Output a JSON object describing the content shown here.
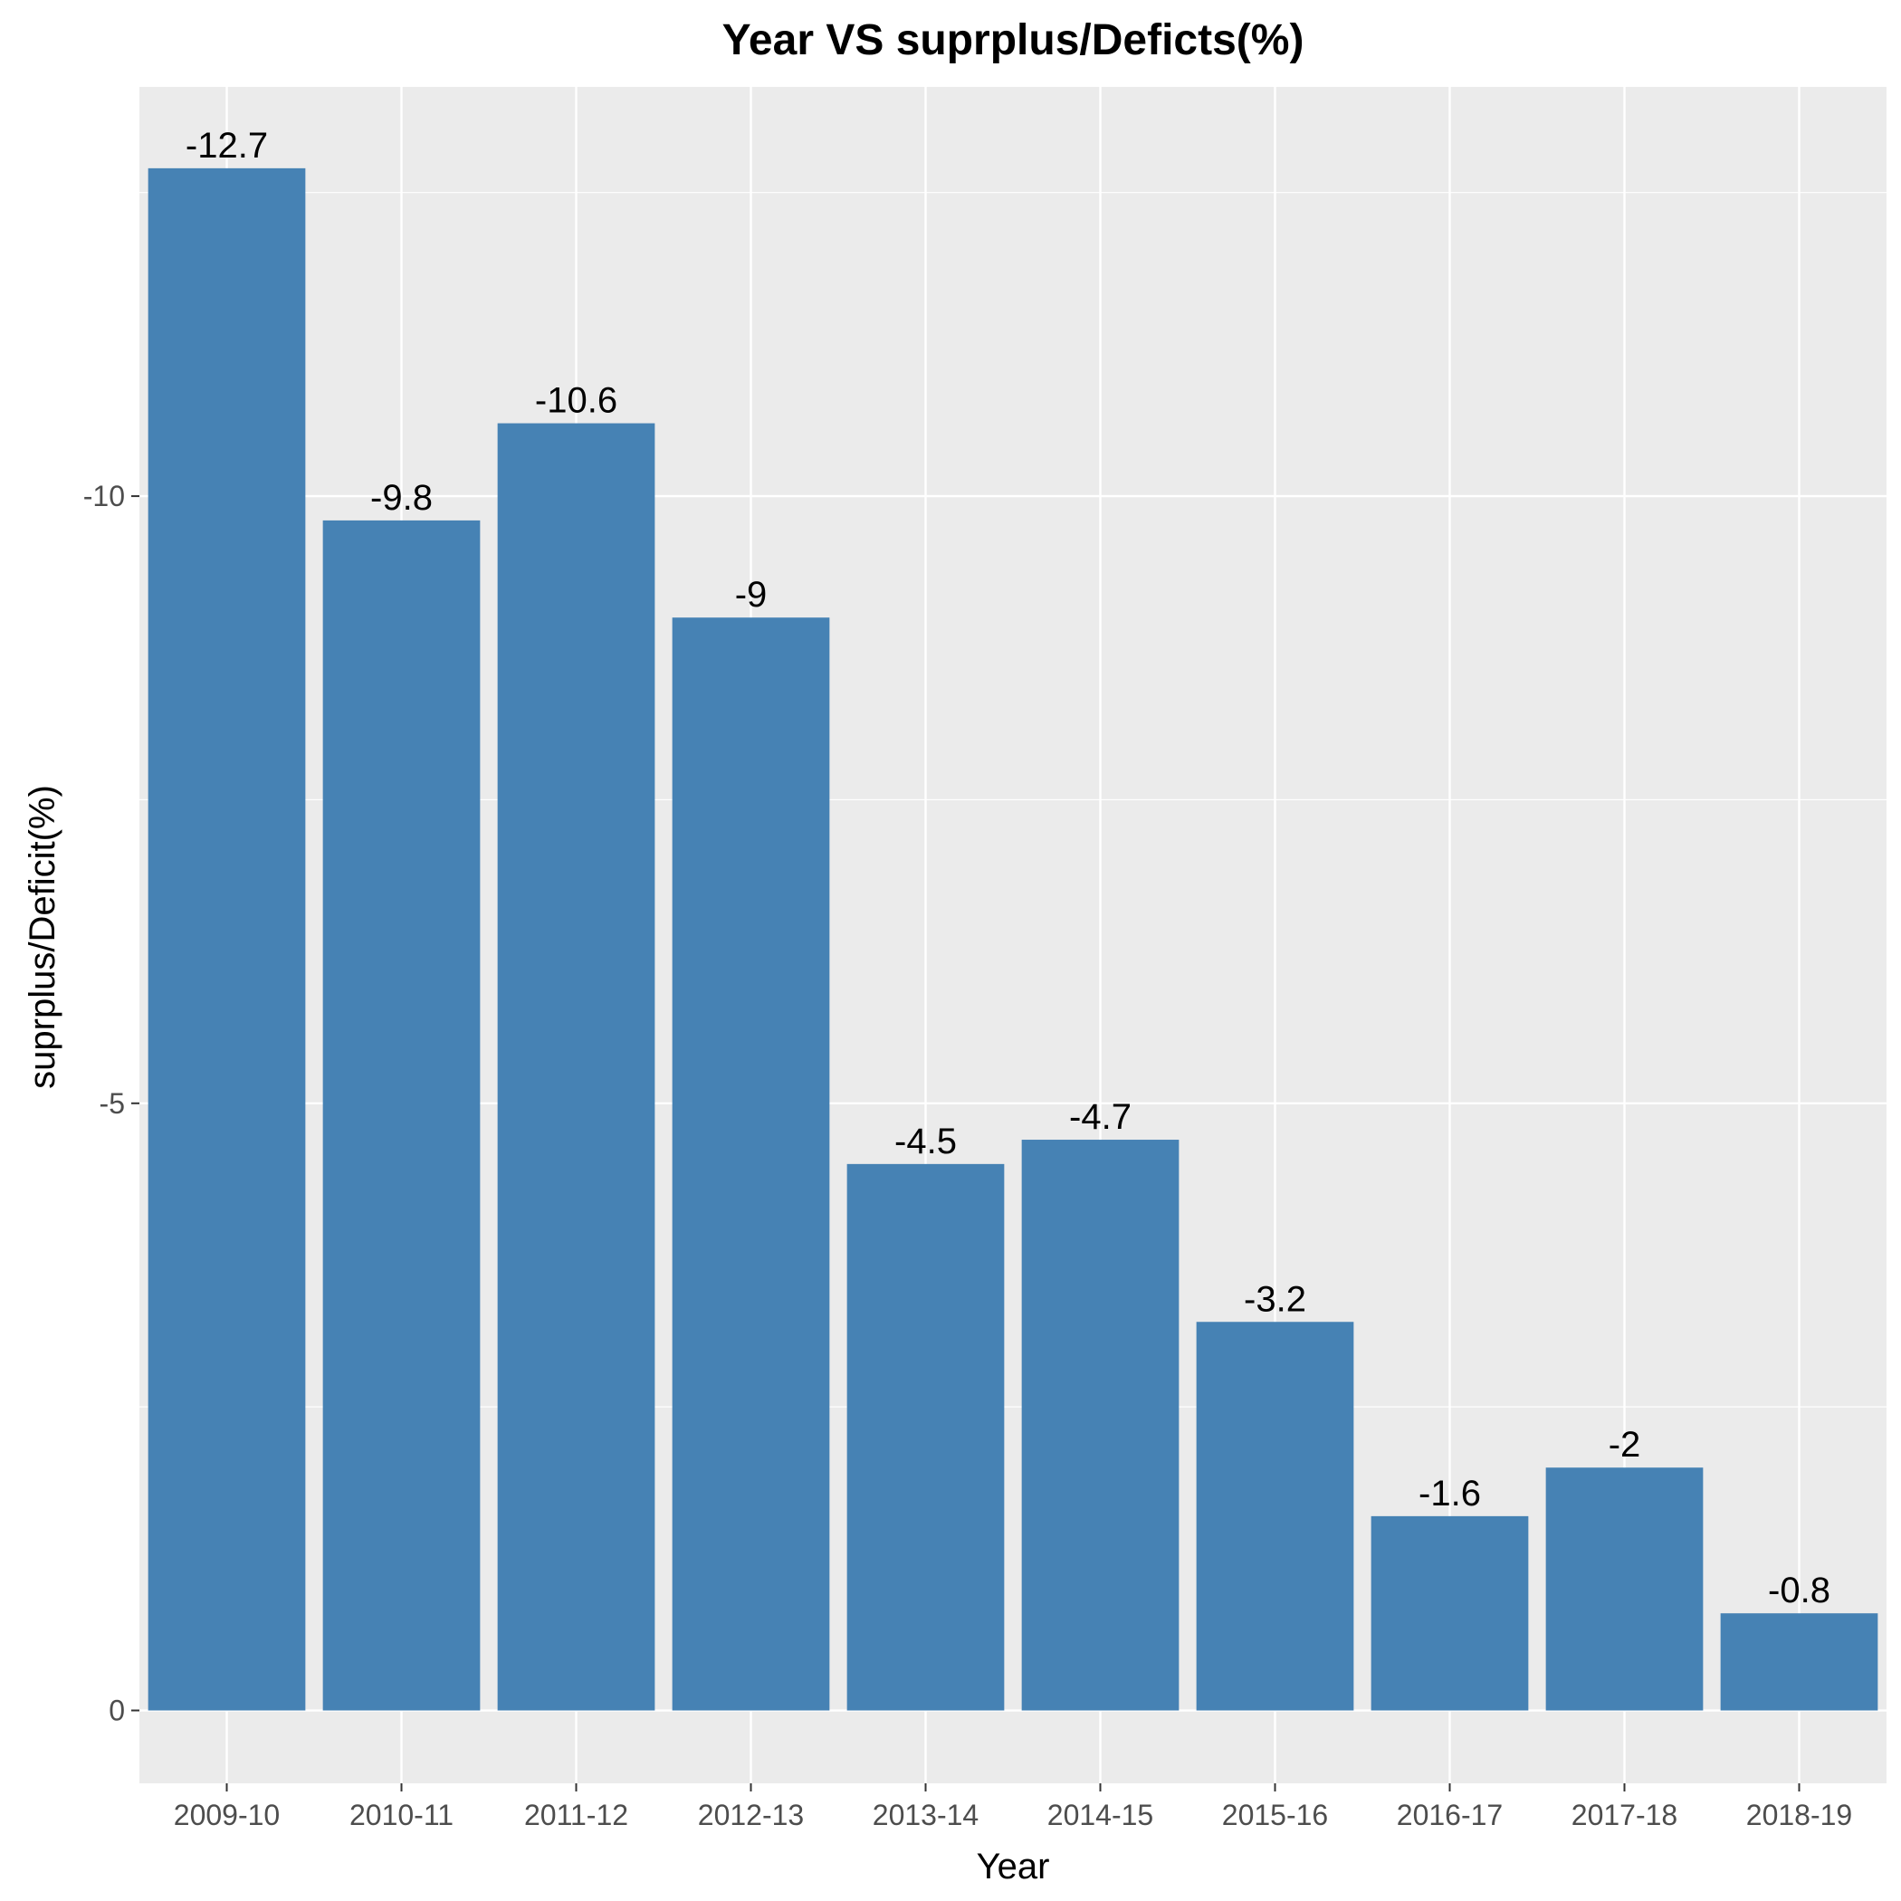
{
  "chart_data": {
    "type": "bar",
    "title": "Year VS  suprplus/Deficts(%)",
    "xlabel": "Year",
    "ylabel": "suprplus/Deficit(%)",
    "categories": [
      "2009-10",
      "2010-11",
      "2011-12",
      "2012-13",
      "2013-14",
      "2014-15",
      "2015-16",
      "2016-17",
      "2017-18",
      "2018-19"
    ],
    "values": [
      -12.7,
      -9.8,
      -10.6,
      -9,
      -4.5,
      -4.7,
      -3.2,
      -1.6,
      -2,
      -0.8
    ],
    "value_labels": [
      "-12.7",
      "-9.8",
      "-10.6",
      "-9",
      "-4.5",
      "-4.7",
      "-3.2",
      "-1.6",
      "-2",
      "-0.8"
    ],
    "y_ticks": [
      0,
      -5,
      -10
    ],
    "y_tick_labels": [
      "0",
      "-5",
      "-10"
    ],
    "y_axis_reversed": true,
    "ylim": [
      0.6,
      -13.37
    ],
    "bar_color": "#4682B4",
    "panel_background": "#EBEBEB",
    "grid": true,
    "legend": "none"
  }
}
